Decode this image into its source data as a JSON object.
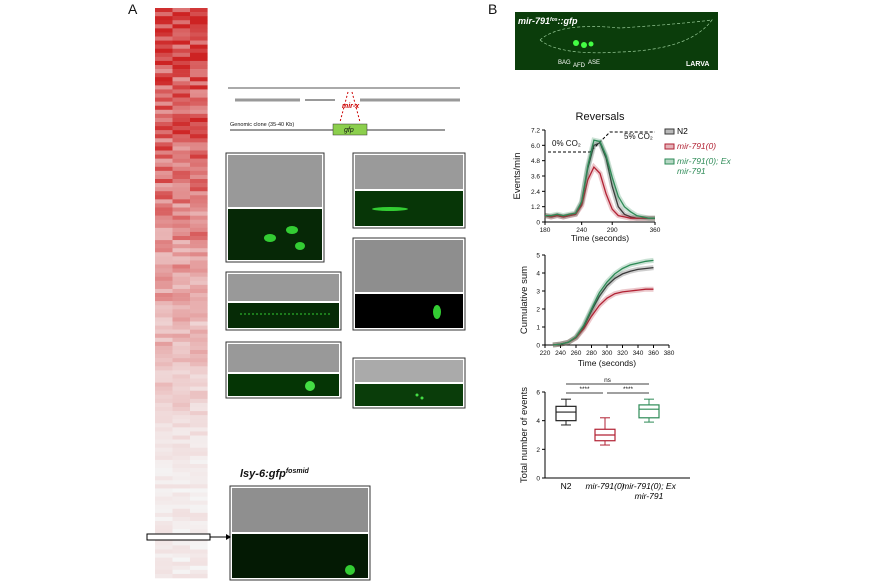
{
  "panel_a": {
    "label": "A",
    "gene_model": {
      "mirna": "mir-x",
      "gfp": "gfp",
      "clone": "Genomic clone (35-40 Kb)"
    },
    "reporter": {
      "name": "lsy-6:gfp",
      "sup": "fosmid"
    }
  },
  "panel_b": {
    "label": "B",
    "image": {
      "name": "mir-791",
      "sup": "fos",
      "suffix": "::gfp",
      "neurons": [
        "BAG",
        "AFD",
        "ASE"
      ],
      "stage": "LARVA"
    }
  },
  "chart_data": [
    {
      "type": "line",
      "title": "Reversals",
      "ylabel": "Events/min",
      "xlabel": "Time (seconds)",
      "annotations": [
        "0% CO₂",
        "5% CO₂"
      ],
      "x": [
        180,
        190,
        200,
        210,
        220,
        230,
        240,
        250,
        260,
        270,
        280,
        290,
        300,
        310,
        320,
        330,
        340,
        350,
        360
      ],
      "xlim": [
        180,
        360
      ],
      "xticks": [
        180,
        240,
        290,
        360
      ],
      "ylim": [
        0,
        7.2
      ],
      "yticks": [
        0,
        1.2,
        2.4,
        3.6,
        4.8,
        {
          "value": 6,
          "label": "6.0"
        },
        7.2
      ],
      "series": [
        {
          "name": "N2",
          "color": "#3a3a3a",
          "values": [
            0.5,
            0.4,
            0.5,
            0.4,
            0.5,
            0.6,
            1.5,
            4.2,
            6.0,
            6.2,
            5.0,
            2.8,
            1.2,
            0.6,
            0.4,
            0.3,
            0.3,
            0.3,
            0.3
          ]
        },
        {
          "name": "mir-791(0)",
          "color": "#b22234",
          "values": [
            0.5,
            0.4,
            0.5,
            0.4,
            0.5,
            0.6,
            1.3,
            3.3,
            4.3,
            3.8,
            2.2,
            1.0,
            0.5,
            0.4,
            0.3,
            0.3,
            0.3,
            0.3,
            0.3
          ]
        },
        {
          "name": "mir-791(0); Ex mir-791",
          "color": "#2e8b57",
          "values": [
            0.5,
            0.5,
            0.6,
            0.5,
            0.6,
            0.7,
            1.6,
            4.4,
            6.4,
            6.3,
            5.2,
            3.5,
            2.0,
            1.2,
            0.8,
            0.5,
            0.4,
            0.3,
            0.3
          ]
        }
      ]
    },
    {
      "type": "line",
      "ylabel": "Cumulative sum",
      "xlabel": "Time (seconds)",
      "x": [
        230,
        240,
        250,
        260,
        270,
        280,
        290,
        300,
        310,
        320,
        330,
        340,
        350,
        360
      ],
      "xlim": [
        220,
        380
      ],
      "xticks": [
        220,
        240,
        260,
        280,
        300,
        320,
        340,
        360,
        380
      ],
      "ylim": [
        0,
        5
      ],
      "yticks": [
        0,
        1,
        2,
        3,
        4,
        5
      ],
      "series": [
        {
          "name": "N2",
          "color": "#3a3a3a",
          "values": [
            0,
            0.05,
            0.15,
            0.4,
            1.0,
            1.9,
            2.7,
            3.3,
            3.7,
            3.95,
            4.1,
            4.2,
            4.25,
            4.3
          ]
        },
        {
          "name": "mir-791(0)",
          "color": "#b22234",
          "values": [
            0,
            0.05,
            0.15,
            0.4,
            0.9,
            1.6,
            2.2,
            2.6,
            2.85,
            2.95,
            3.0,
            3.05,
            3.1,
            3.1
          ]
        },
        {
          "name": "mir-791(0); Ex mir-791",
          "color": "#2e8b57",
          "values": [
            0,
            0.05,
            0.15,
            0.45,
            1.1,
            2.0,
            2.9,
            3.5,
            3.95,
            4.25,
            4.45,
            4.55,
            4.65,
            4.7
          ]
        }
      ]
    },
    {
      "type": "box",
      "ylabel": "Total number of events",
      "categories": [
        "N2",
        "mir-791(0)",
        "mir-791(0); Ex mir-791"
      ],
      "colors": [
        "#222222",
        "#b22234",
        "#2e8b57"
      ],
      "min": [
        3.7,
        2.3,
        3.9
      ],
      "q1": [
        4.0,
        2.6,
        4.2
      ],
      "median": [
        4.6,
        3.0,
        4.8
      ],
      "q3": [
        5.0,
        3.4,
        5.1
      ],
      "max": [
        5.5,
        4.2,
        5.5
      ],
      "annotations": [
        "ns",
        "****",
        "****"
      ],
      "ylim": [
        0,
        6
      ],
      "yticks": [
        0,
        2,
        4,
        6
      ]
    }
  ]
}
